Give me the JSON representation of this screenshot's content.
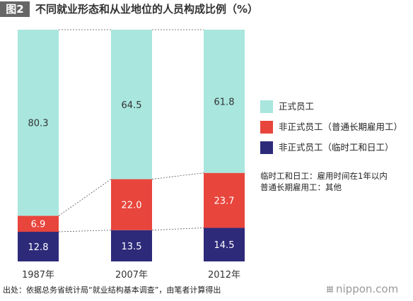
{
  "header": {
    "figure_tag": "图2",
    "title": "不同就业形态和从业地位的人员构成比例（%）"
  },
  "chart_data": {
    "type": "bar",
    "stacked": true,
    "categories": [
      "1987年",
      "2007年",
      "2012年"
    ],
    "series": [
      {
        "name": "非正式员工（临时工和日工）",
        "color": "#2e2a7a",
        "values": [
          12.8,
          13.5,
          14.5
        ]
      },
      {
        "name": "非正式员工（普通长期雇用工）",
        "color": "#e8453c",
        "values": [
          6.9,
          22.0,
          23.7
        ]
      },
      {
        "name": "正式员工",
        "color": "#a8e6de",
        "values": [
          80.3,
          64.5,
          61.8
        ]
      }
    ],
    "ylim": [
      0,
      100
    ],
    "grid": false,
    "connector_lines": "dotted",
    "legend_position": "right"
  },
  "legend": {
    "items": [
      {
        "label": "正式员工",
        "color": "#a8e6de"
      },
      {
        "label": "非正式员工（普通长期雇用工）",
        "color": "#e8453c"
      },
      {
        "label": "非正式员工（临时工和日工）",
        "color": "#2e2a7a"
      }
    ]
  },
  "notes": [
    "临时工和日工：雇用时间在1年以内",
    "普通长期雇用工：其他"
  ],
  "footer": {
    "source": "出处：依据总务省统计局“就业结构基本调查”，由笔者计算得出",
    "logo": "nippon.com"
  }
}
